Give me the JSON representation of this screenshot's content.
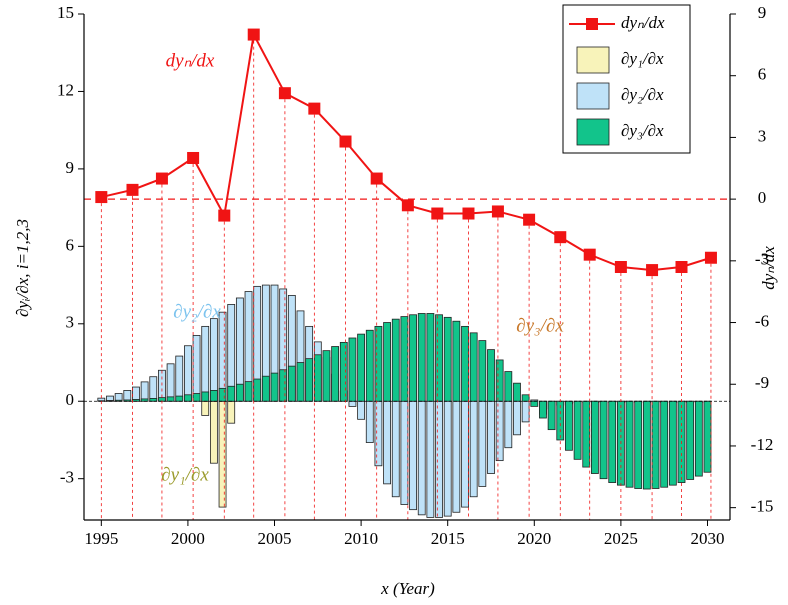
{
  "chart_data": {
    "type": "combo",
    "x_label": "x (Year)",
    "y_label": "∂yᵢ/∂x, i=1,2,3",
    "y2_label": "dyₙ/dx",
    "xlim": [
      1994,
      2031.3
    ],
    "xticks": [
      1995,
      2000,
      2005,
      2010,
      2015,
      2020,
      2025,
      2030
    ],
    "ylim": [
      -4.6,
      15
    ],
    "yticks": [
      -3,
      0,
      3,
      6,
      9,
      12,
      15
    ],
    "y2lim": [
      -15.6,
      9
    ],
    "y2ticks": [
      -15,
      -12,
      -9,
      -6,
      -3,
      0,
      3,
      6,
      9
    ],
    "legend": "upper right",
    "x": [
      1995,
      1995.5,
      1996,
      1996.5,
      1997,
      1997.5,
      1998,
      1998.5,
      1999,
      1999.5,
      2000,
      2000.5,
      2001,
      2001.5,
      2002,
      2002.5,
      2003,
      2003.5,
      2004,
      2004.5,
      2005,
      2005.5,
      2006,
      2006.5,
      2007,
      2007.5,
      2008,
      2008.5,
      2009,
      2009.5,
      2010,
      2010.5,
      2011,
      2011.5,
      2012,
      2012.5,
      2013,
      2013.5,
      2014,
      2014.5,
      2015,
      2015.5,
      2016,
      2016.5,
      2017,
      2017.5,
      2018,
      2018.5,
      2019,
      2019.5,
      2020,
      2020.5,
      2021,
      2021.5,
      2022,
      2022.5,
      2023,
      2023.5,
      2024,
      2024.5,
      2025,
      2025.5,
      2026,
      2026.5,
      2027,
      2027.5,
      2028,
      2028.5,
      2029,
      2029.5,
      2030
    ],
    "series": [
      {
        "name": "dyₙ/dx",
        "type": "line",
        "axis": "y2",
        "color": "#f01414",
        "x": [
          1995,
          1996.8,
          1998.5,
          2000.3,
          2002.1,
          2003.8,
          2005.6,
          2007.3,
          2009.1,
          2010.9,
          2012.7,
          2014.4,
          2016.2,
          2017.9,
          2019.7,
          2021.5,
          2023.2,
          2025,
          2026.8,
          2028.5,
          2030.2
        ],
        "values": [
          0.1,
          0.45,
          1.0,
          2.0,
          -0.8,
          8.0,
          5.15,
          4.4,
          2.8,
          1.0,
          -0.3,
          -0.7,
          -0.7,
          -0.6,
          -1.0,
          -1.85,
          -2.7,
          -3.3,
          -3.45,
          -3.3,
          -2.85
        ]
      },
      {
        "name": "∂y₁/∂x",
        "type": "bar",
        "color": "#f8f3ba",
        "values": [
          0,
          0,
          0,
          0,
          0,
          0,
          0,
          0,
          0,
          0,
          0,
          0,
          -0.55,
          -2.4,
          -4.1,
          -0.85,
          0,
          0,
          0,
          0,
          0,
          0,
          0,
          0,
          0,
          0,
          0,
          0,
          0,
          0,
          0,
          0,
          0,
          0,
          0,
          0,
          0,
          0,
          0,
          0,
          0,
          0,
          0,
          0,
          0,
          0,
          0,
          0,
          0,
          0,
          0,
          0,
          0,
          0,
          0,
          0,
          0,
          0,
          0,
          0,
          0,
          0,
          0,
          0,
          0,
          0,
          0,
          0,
          0,
          0,
          0
        ]
      },
      {
        "name": "∂y₂/∂x",
        "type": "bar",
        "color": "#bfe2f8",
        "values": [
          0.12,
          0.2,
          0.3,
          0.42,
          0.55,
          0.75,
          0.95,
          1.2,
          1.45,
          1.75,
          2.15,
          2.55,
          2.9,
          3.2,
          3.45,
          3.75,
          4.0,
          4.25,
          4.45,
          4.5,
          4.5,
          4.35,
          4.1,
          3.5,
          2.9,
          2.3,
          1.7,
          1.05,
          0.4,
          -0.2,
          -0.7,
          -1.6,
          -2.5,
          -3.2,
          -3.7,
          -4.0,
          -4.2,
          -4.4,
          -4.5,
          -4.5,
          -4.45,
          -4.3,
          -4.1,
          -3.7,
          -3.3,
          -2.8,
          -2.3,
          -1.8,
          -1.3,
          -0.8,
          0.05,
          -0.5,
          -0.3,
          -0.15,
          -0.1,
          -0.05,
          -0.05,
          -0.05,
          -0.05,
          -0.05,
          -0.05,
          -0.05,
          -0.05,
          -0.05,
          -0.05,
          -0.05,
          -0.05,
          -0.05,
          -0.05,
          -0.05,
          -0.05
        ]
      },
      {
        "name": "∂y₃/∂x",
        "type": "bar",
        "color": "#12c48b",
        "values": [
          0.02,
          0.03,
          0.04,
          0.05,
          0.07,
          0.09,
          0.11,
          0.14,
          0.17,
          0.2,
          0.25,
          0.3,
          0.36,
          0.42,
          0.5,
          0.58,
          0.66,
          0.76,
          0.86,
          0.97,
          1.09,
          1.22,
          1.36,
          1.5,
          1.65,
          1.8,
          1.96,
          2.12,
          2.28,
          2.45,
          2.6,
          2.75,
          2.9,
          3.05,
          3.18,
          3.28,
          3.35,
          3.4,
          3.4,
          3.35,
          3.25,
          3.1,
          2.9,
          2.65,
          2.35,
          2.0,
          1.6,
          1.15,
          0.7,
          0.25,
          -0.2,
          -0.65,
          -1.1,
          -1.5,
          -1.9,
          -2.25,
          -2.55,
          -2.8,
          -3.0,
          -3.15,
          -3.25,
          -3.33,
          -3.38,
          -3.4,
          -3.38,
          -3.33,
          -3.25,
          -3.15,
          -3.03,
          -2.9,
          -2.75
        ]
      }
    ],
    "annotations": [
      {
        "text": "dyₙ/dx",
        "color": "#f01414"
      },
      {
        "text": "∂y₂/∂x",
        "color": "#7cc3ee"
      },
      {
        "text": "∂y₃/∂x",
        "color": "#c8782a"
      },
      {
        "text": "∂y₁/∂x",
        "color": "#9a9a2a"
      }
    ]
  }
}
